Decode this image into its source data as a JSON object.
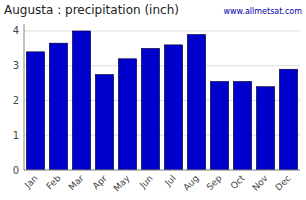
{
  "chart_data": {
    "type": "bar",
    "title": "Augusta : precipitation (inch)",
    "categories": [
      "Jan",
      "Feb",
      "Mar",
      "Apr",
      "May",
      "Jun",
      "Jul",
      "Aug",
      "Sep",
      "Oct",
      "Nov",
      "Dec"
    ],
    "values": [
      3.4,
      3.65,
      4.0,
      2.75,
      3.2,
      3.5,
      3.6,
      3.9,
      2.55,
      2.55,
      2.4,
      2.9
    ],
    "color": "#0000CC",
    "ylim": [
      0,
      4.2
    ],
    "yticks": [
      0,
      1,
      2,
      3,
      4
    ],
    "grid": true,
    "annotation": "www.allmetsat.com"
  }
}
